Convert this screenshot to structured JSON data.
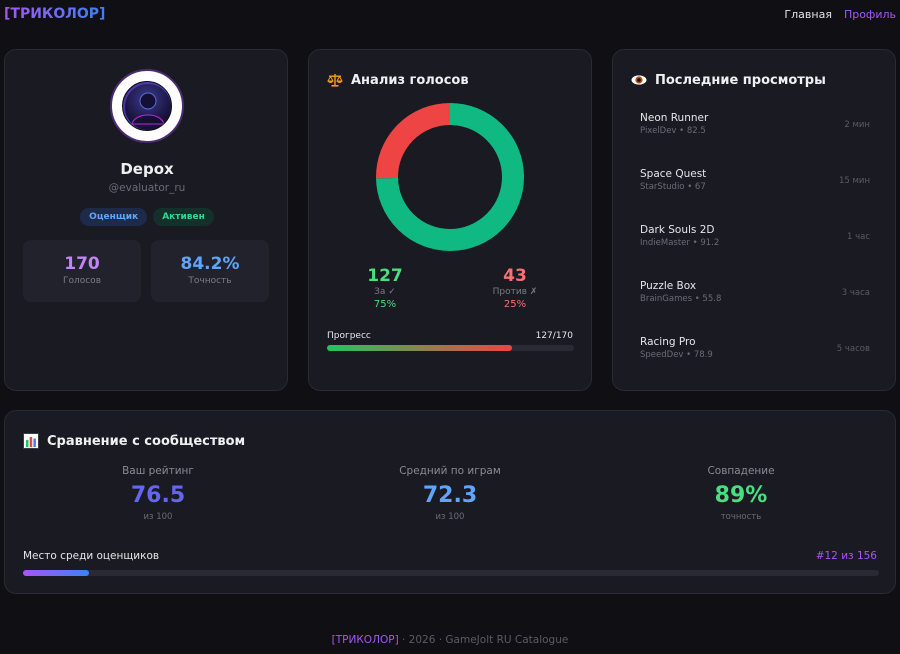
{
  "header": {
    "logo": "[ТРИКОЛОР]",
    "nav": [
      {
        "label": "Главная"
      },
      {
        "label": "Профиль"
      }
    ]
  },
  "profile": {
    "avatar_icon": "user-avatar-icon",
    "username": "Depox",
    "handle": "@evaluator_ru",
    "badges": [
      {
        "label": "Оценщик"
      },
      {
        "label": "Активен"
      }
    ],
    "stats": [
      {
        "value": "170",
        "label": "Голосов"
      },
      {
        "value": "84.2%",
        "label": "Точность"
      }
    ]
  },
  "votes": {
    "title": "Анализ голосов",
    "icon": "scales-icon",
    "for": {
      "count": "127",
      "label": "За ✓",
      "percent": "75%",
      "color": "#10b981"
    },
    "against": {
      "count": "43",
      "label": "Против ✗",
      "percent": "25%",
      "color": "#ef4444"
    },
    "progress": {
      "label": "Прогресс",
      "count": "127/170",
      "fraction": 0.747
    }
  },
  "recent": {
    "title": "Последние просмотры",
    "icon": "eye-icon",
    "items": [
      {
        "name": "Neon Runner",
        "meta": "PixelDev • 82.5",
        "time": "2 мин"
      },
      {
        "name": "Space Quest",
        "meta": "StarStudio • 67",
        "time": "15 мин"
      },
      {
        "name": "Dark Souls 2D",
        "meta": "IndieMaster • 91.2",
        "time": "1 час"
      },
      {
        "name": "Puzzle Box",
        "meta": "BrainGames • 55.8",
        "time": "3 часа"
      },
      {
        "name": "Racing Pro",
        "meta": "SpeedDev • 78.9",
        "time": "5 часов"
      }
    ]
  },
  "compare": {
    "title": "Сравнение с сообществом",
    "icon": "bar-chart-icon",
    "columns": [
      {
        "label": "Ваш рейтинг",
        "value": "76.5",
        "sub": "из 100"
      },
      {
        "label": "Средний по играм",
        "value": "72.3",
        "sub": "из 100"
      },
      {
        "label": "Совпадение",
        "value": "89%",
        "sub": "точность"
      }
    ],
    "rank": {
      "label": "Место среди оценщиков",
      "value": "#12 из 156",
      "fraction": 0.077
    }
  },
  "footer": {
    "brand": "[ТРИКОЛОР]",
    "text": " · 2026 · GameJolt RU Catalogue"
  }
}
